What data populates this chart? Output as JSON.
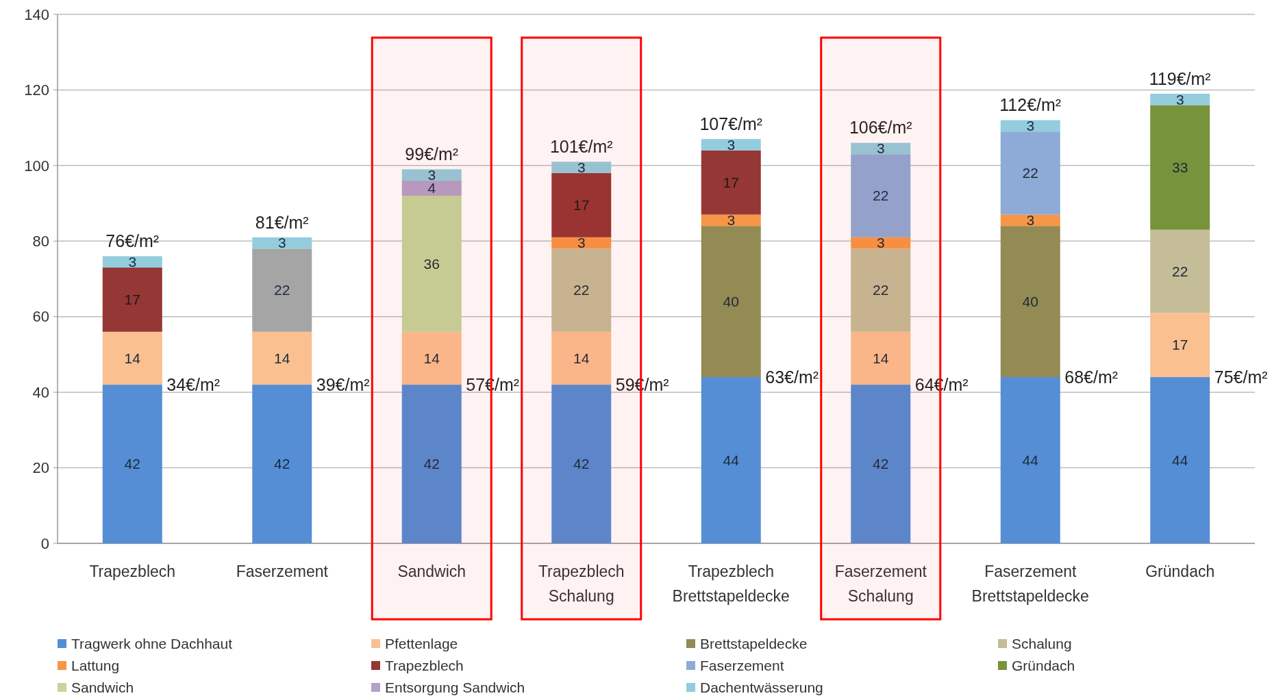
{
  "chart_data": {
    "type": "bar",
    "stacked": true,
    "categories": [
      "Trapezblech",
      "Faserzement",
      "Sandwich",
      "Trapezblech Schalung",
      "Trapezblech Brettstapeldecke",
      "Faserzement Schalung",
      "Faserzement Brettstapeldecke",
      "Gründach"
    ],
    "series": [
      {
        "name": "Tragwerk ohne Dachhaut",
        "color": "#558ed5",
        "values": [
          42,
          42,
          42,
          42,
          44,
          42,
          44,
          44
        ]
      },
      {
        "name": "Pfettenlage",
        "color": "#fac090",
        "values": [
          14,
          14,
          14,
          14,
          null,
          14,
          null,
          17
        ]
      },
      {
        "name": "Brettstapeldecke",
        "color": "#948a54",
        "values": [
          null,
          null,
          null,
          null,
          40,
          null,
          40,
          null
        ]
      },
      {
        "name": "Schalung",
        "color": "#c4bd97",
        "values": [
          null,
          null,
          null,
          22,
          null,
          22,
          null,
          22
        ]
      },
      {
        "name": "Lattung",
        "color": "#f79646",
        "values": [
          null,
          null,
          null,
          3,
          3,
          3,
          3,
          null
        ]
      },
      {
        "name": "Trapezblech",
        "color": "#953735",
        "values": [
          17,
          null,
          null,
          17,
          17,
          null,
          null,
          null
        ]
      },
      {
        "name": "Faserzement",
        "color": "#8eaad6",
        "colors": [
          null,
          "#a5a5a5",
          null,
          null,
          null,
          null,
          null,
          null
        ],
        "values": [
          null,
          22,
          null,
          null,
          null,
          22,
          22,
          null
        ]
      },
      {
        "name": "Gründach",
        "color": "#77933c",
        "values": [
          null,
          null,
          null,
          null,
          null,
          null,
          null,
          33
        ]
      },
      {
        "name": "Sandwich",
        "color": "#c3d69b",
        "values": [
          null,
          null,
          36,
          null,
          null,
          null,
          null,
          null
        ]
      },
      {
        "name": "Entsorgung Sandwich",
        "color": "#b3a2c7",
        "values": [
          null,
          null,
          4,
          null,
          null,
          null,
          null,
          null
        ]
      },
      {
        "name": "Dachentwässerung",
        "color": "#93cddd",
        "values": [
          3,
          3,
          3,
          3,
          3,
          3,
          3,
          3
        ]
      }
    ],
    "data_labels": true,
    "totals": [
      "76€/m²",
      "81€/m²",
      "99€/m²",
      "101€/m²",
      "107€/m²",
      "106€/m²",
      "112€/m²",
      "119€/m²"
    ],
    "annotations": [
      {
        "text": "34€/m²",
        "x": "Trapezblech",
        "y": 42
      },
      {
        "text": "39€/m²",
        "x": "Faserzement",
        "y": 42
      },
      {
        "text": "57€/m²",
        "x": "Sandwich",
        "y": 42
      },
      {
        "text": "59€/m²",
        "x": "Trapezblech Schalung",
        "y": 42
      },
      {
        "text": "63€/m²",
        "x": "Trapezblech Brettstapeldecke",
        "y": 44
      },
      {
        "text": "64€/m²",
        "x": "Faserzement Schalung",
        "y": 42
      },
      {
        "text": "68€/m²",
        "x": "Faserzement Brettstapeldecke",
        "y": 44
      },
      {
        "text": "75€/m²",
        "x": "Gründach",
        "y": 44
      }
    ],
    "bands": [
      {
        "axis": "x",
        "from": "Sandwich",
        "to": "Sandwich",
        "color": "#ff0000"
      },
      {
        "axis": "x",
        "from": "Trapezblech Schalung",
        "to": "Trapezblech Schalung",
        "color": "#ff0000"
      },
      {
        "axis": "x",
        "from": "Faserzement Schalung",
        "to": "Faserzement Schalung",
        "color": "#ff0000"
      }
    ],
    "ylim": [
      0,
      140
    ],
    "yticks": [
      0,
      20,
      40,
      60,
      80,
      100,
      120,
      140
    ],
    "grid": "y",
    "legend": "bottom"
  }
}
